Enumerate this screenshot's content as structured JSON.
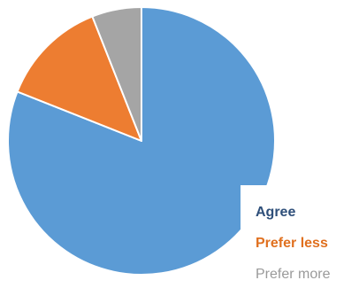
{
  "chart_data": {
    "type": "pie",
    "slices": [
      {
        "label": "Agree",
        "value": 81,
        "color": "#5b9bd5"
      },
      {
        "label": "Prefer less",
        "value": 13,
        "color": "#ed7d31"
      },
      {
        "label": "Prefer more",
        "value": 6,
        "color": "#a5a5a5"
      }
    ],
    "legend": {
      "placement": "bottom-right",
      "items": [
        {
          "label": "Agree",
          "color": "#2e4f7a"
        },
        {
          "label": "Prefer less",
          "color": "#e0701f"
        },
        {
          "label": "Prefer more",
          "color": "#9a9a9a"
        }
      ]
    }
  }
}
